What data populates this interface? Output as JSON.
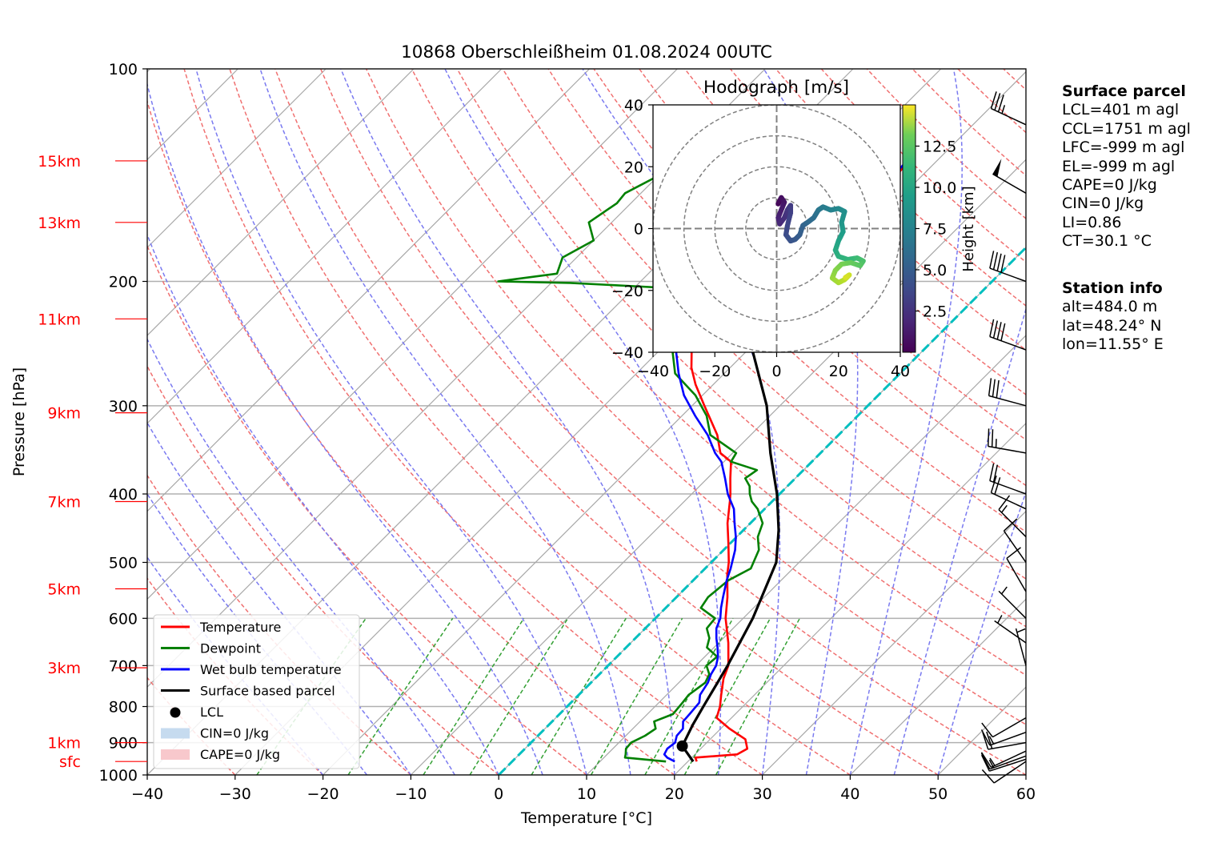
{
  "chart_data": [
    {
      "type": "line",
      "title": "10868 Oberschleißheim 01.08.2024 00UTC",
      "xlabel": "Temperature [°C]",
      "ylabel": "Pressure [hPa]",
      "xlim": [
        -40,
        60
      ],
      "ylim": [
        1000,
        100
      ],
      "y_scale": "log",
      "x_ticks": [
        -40,
        -30,
        -20,
        -10,
        0,
        10,
        20,
        30,
        40,
        50,
        60
      ],
      "x_tick_labels": [
        "−40",
        "−30",
        "−20",
        "−10",
        "0",
        "10",
        "20",
        "30",
        "40",
        "50",
        "60"
      ],
      "y_ticks": [
        100,
        200,
        300,
        400,
        500,
        600,
        700,
        800,
        900,
        1000
      ],
      "height_labels": [
        {
          "text": "15km",
          "p": 135
        },
        {
          "text": "13km",
          "p": 165
        },
        {
          "text": "11km",
          "p": 226
        },
        {
          "text": "9km",
          "p": 307
        },
        {
          "text": "7km",
          "p": 410
        },
        {
          "text": "5km",
          "p": 545
        },
        {
          "text": "3km",
          "p": 705
        },
        {
          "text": "1km",
          "p": 900
        },
        {
          "text": "sfc",
          "p": 957
        }
      ],
      "grid": true,
      "legend_position": "lower-left",
      "series": [
        {
          "name": "Temperature",
          "color": "#ff0000",
          "points": [
            [
              957,
              21.0
            ],
            [
              945,
              20.4
            ],
            [
              935,
              24.8
            ],
            [
              918,
              25.3
            ],
            [
              890,
              24.0
            ],
            [
              860,
              21.0
            ],
            [
              830,
              18.3
            ],
            [
              800,
              17.4
            ],
            [
              770,
              16.2
            ],
            [
              730,
              14.6
            ],
            [
              700,
              13.7
            ],
            [
              650,
              11.1
            ],
            [
              600,
              8.0
            ],
            [
              560,
              5.8
            ],
            [
              520,
              3.2
            ],
            [
              500,
              2.0
            ],
            [
              470,
              -0.2
            ],
            [
              440,
              -2.6
            ],
            [
              410,
              -4.8
            ],
            [
              400,
              -5.6
            ],
            [
              380,
              -7.4
            ],
            [
              360,
              -9.2
            ],
            [
              350,
              -11.4
            ],
            [
              330,
              -13.8
            ],
            [
              300,
              -18.6
            ],
            [
              280,
              -22.0
            ],
            [
              265,
              -24.4
            ],
            [
              250,
              -26.4
            ],
            [
              230,
              -29.6
            ],
            [
              215,
              -31.6
            ],
            [
              205,
              -33.8
            ],
            [
              200,
              -34.4
            ],
            [
              198,
              -33.4
            ],
            [
              196,
              -29.6
            ],
            [
              190,
              -27.0
            ],
            [
              180,
              -26.4
            ],
            [
              170,
              -25.8
            ],
            [
              160,
              -25.0
            ],
            [
              150,
              -24.0
            ],
            [
              145,
              -23.4
            ],
            [
              140,
              -23.0
            ],
            [
              136,
              -23.2
            ],
            [
              135,
              -23.2
            ]
          ]
        },
        {
          "name": "Dewpoint",
          "color": "#008000",
          "points": [
            [
              957,
              17.5
            ],
            [
              945,
              12.4
            ],
            [
              935,
              12.1
            ],
            [
              918,
              11.5
            ],
            [
              900,
              11.4
            ],
            [
              880,
              12.2
            ],
            [
              860,
              12.6
            ],
            [
              840,
              11.6
            ],
            [
              820,
              12.9
            ],
            [
              790,
              12.7
            ],
            [
              770,
              12.5
            ],
            [
              740,
              13.0
            ],
            [
              720,
              12.5
            ],
            [
              700,
              11.2
            ],
            [
              680,
              11.4
            ],
            [
              660,
              9.2
            ],
            [
              640,
              8.4
            ],
            [
              620,
              7.0
            ],
            [
              600,
              6.8
            ],
            [
              580,
              4.0
            ],
            [
              560,
              3.6
            ],
            [
              530,
              4.0
            ],
            [
              510,
              5.2
            ],
            [
              480,
              4.0
            ],
            [
              460,
              2.4
            ],
            [
              440,
              1.4
            ],
            [
              420,
              -0.8
            ],
            [
              410,
              -2.3
            ],
            [
              400,
              -3.4
            ],
            [
              390,
              -4.3
            ],
            [
              380,
              -5.7
            ],
            [
              370,
              -5.3
            ],
            [
              360,
              -9.2
            ],
            [
              350,
              -9.6
            ],
            [
              330,
              -14.6
            ],
            [
              310,
              -17.2
            ],
            [
              290,
              -20.8
            ],
            [
              270,
              -25.6
            ],
            [
              250,
              -28.6
            ],
            [
              230,
              -31.0
            ],
            [
              210,
              -33.6
            ],
            [
              205,
              -33.8
            ],
            [
              201,
              -47.8
            ],
            [
              200,
              -56.2
            ],
            [
              195,
              -50.4
            ],
            [
              185,
              -51.6
            ],
            [
              175,
              -50.0
            ],
            [
              165,
              -52.6
            ],
            [
              155,
              -51.6
            ],
            [
              150,
              -51.8
            ],
            [
              140,
              -49.6
            ],
            [
              135,
              -47.6
            ]
          ]
        },
        {
          "name": "Wet bulb temperature",
          "color": "#0000ff",
          "points": [
            [
              957,
              18.5
            ],
            [
              945,
              17.2
            ],
            [
              935,
              16.5
            ],
            [
              918,
              16.2
            ],
            [
              900,
              16.4
            ],
            [
              880,
              15.8
            ],
            [
              860,
              15.7
            ],
            [
              840,
              14.9
            ],
            [
              820,
              14.8
            ],
            [
              790,
              14.6
            ],
            [
              770,
              13.8
            ],
            [
              740,
              13.3
            ],
            [
              720,
              12.7
            ],
            [
              700,
              12.3
            ],
            [
              680,
              11.5
            ],
            [
              660,
              10.4
            ],
            [
              640,
              9.2
            ],
            [
              620,
              8.1
            ],
            [
              600,
              7.4
            ],
            [
              580,
              6.3
            ],
            [
              560,
              5.3
            ],
            [
              530,
              3.8
            ],
            [
              510,
              2.9
            ],
            [
              480,
              1.3
            ],
            [
              460,
              -0.1
            ],
            [
              440,
              -1.8
            ],
            [
              420,
              -3.5
            ],
            [
              400,
              -5.9
            ],
            [
              380,
              -8.0
            ],
            [
              360,
              -10.3
            ],
            [
              350,
              -12.0
            ],
            [
              330,
              -14.9
            ],
            [
              310,
              -18.5
            ],
            [
              290,
              -22.1
            ],
            [
              270,
              -25.2
            ],
            [
              250,
              -28.2
            ],
            [
              230,
              -31.0
            ],
            [
              210,
              -33.8
            ],
            [
              200,
              -34.6
            ],
            [
              196,
              -30.4
            ],
            [
              190,
              -27.6
            ],
            [
              180,
              -26.8
            ],
            [
              170,
              -26.2
            ],
            [
              160,
              -25.2
            ],
            [
              150,
              -24.4
            ],
            [
              140,
              -23.3
            ],
            [
              135,
              -23.4
            ]
          ]
        },
        {
          "name": "Surface based parcel",
          "color": "#000000",
          "points": [
            [
              957,
              20.6
            ],
            [
              910,
              17.6
            ],
            [
              850,
              16.4
            ],
            [
              800,
              15.5
            ],
            [
              700,
              13.6
            ],
            [
              600,
              11.1
            ],
            [
              500,
              7.4
            ],
            [
              450,
              4.0
            ],
            [
              400,
              -0.3
            ],
            [
              350,
              -5.7
            ],
            [
              300,
              -11.5
            ],
            [
              250,
              -19.5
            ],
            [
              200,
              -28.5
            ],
            [
              150,
              -38.5
            ],
            [
              135,
              -41.3
            ]
          ]
        }
      ],
      "lcl": {
        "name": "LCL",
        "p": 910,
        "t": 17.6
      },
      "cin_legend": "CIN=0 J/kg",
      "cape_legend": "CAPE=0 J/kg",
      "zero_isotherm_color": "#00bfbf",
      "wind_barbs": [
        {
          "p": 957,
          "dir": 236,
          "speed_kt": 10
        },
        {
          "p": 950,
          "dir": 252,
          "speed_kt": 10
        },
        {
          "p": 940,
          "dir": 250,
          "speed_kt": 15
        },
        {
          "p": 925,
          "dir": 245,
          "speed_kt": 15
        },
        {
          "p": 900,
          "dir": 260,
          "speed_kt": 20
        },
        {
          "p": 870,
          "dir": 250,
          "speed_kt": 15
        },
        {
          "p": 830,
          "dir": 240,
          "speed_kt": 10
        },
        {
          "p": 700,
          "dir": 345,
          "speed_kt": 5
        },
        {
          "p": 650,
          "dir": 305,
          "speed_kt": 5
        },
        {
          "p": 600,
          "dir": 315,
          "speed_kt": 5
        },
        {
          "p": 550,
          "dir": 330,
          "speed_kt": 10
        },
        {
          "p": 500,
          "dir": 325,
          "speed_kt": 10
        },
        {
          "p": 460,
          "dir": 315,
          "speed_kt": 15
        },
        {
          "p": 420,
          "dir": 295,
          "speed_kt": 20
        },
        {
          "p": 400,
          "dir": 290,
          "speed_kt": 20
        },
        {
          "p": 350,
          "dir": 280,
          "speed_kt": 25
        },
        {
          "p": 300,
          "dir": 285,
          "speed_kt": 30
        },
        {
          "p": 250,
          "dir": 290,
          "speed_kt": 40
        },
        {
          "p": 200,
          "dir": 290,
          "speed_kt": 40
        },
        {
          "p": 150,
          "dir": 300,
          "speed_kt": 50
        },
        {
          "p": 120,
          "dir": 295,
          "speed_kt": 35
        }
      ],
      "legend": [
        {
          "label": "Temperature",
          "kind": "line",
          "color": "#ff0000"
        },
        {
          "label": "Dewpoint",
          "kind": "line",
          "color": "#008000"
        },
        {
          "label": "Wet bulb temperature",
          "kind": "line",
          "color": "#0000ff"
        },
        {
          "label": "Surface based parcel",
          "kind": "line",
          "color": "#000000"
        },
        {
          "label": "LCL",
          "kind": "dot",
          "color": "#000000"
        },
        {
          "label": "CIN=0 J/kg",
          "kind": "patch",
          "color": "#c6dbef"
        },
        {
          "label": "CAPE=0 J/kg",
          "kind": "patch",
          "color": "#f8c8cc"
        }
      ]
    },
    {
      "type": "scatter",
      "title": "Hodograph [m/s]",
      "xlim": [
        -40,
        40
      ],
      "ylim": [
        -40,
        40
      ],
      "ticks": [
        -40,
        -20,
        0,
        20,
        40
      ],
      "tick_labels": [
        "−40",
        "−20",
        "0",
        "20",
        "40"
      ],
      "rings": [
        10,
        20,
        30,
        40
      ],
      "colorbar": {
        "label": "Height [km]",
        "colormap": "viridis",
        "min": 0,
        "max": 15,
        "ticks": [
          2.5,
          5.0,
          7.5,
          10.0,
          12.5
        ],
        "tick_labels": [
          "2.5",
          "5.0",
          "7.5",
          "10.0",
          "12.5"
        ]
      },
      "points": [
        [
          0.5,
          8,
          0.2
        ],
        [
          1.5,
          10,
          0.5
        ],
        [
          2.5,
          8.5,
          0.8
        ],
        [
          1.5,
          6,
          1.1
        ],
        [
          0.5,
          3.5,
          1.4
        ],
        [
          1.0,
          1.5,
          1.7
        ],
        [
          2.5,
          3.5,
          2.0
        ],
        [
          3.5,
          6,
          2.3
        ],
        [
          4.5,
          7.5,
          2.6
        ],
        [
          4.5,
          5,
          2.9
        ],
        [
          3.5,
          1,
          3.2
        ],
        [
          3.0,
          -2,
          3.5
        ],
        [
          4.5,
          -4,
          3.8
        ],
        [
          6.0,
          -3.5,
          4.1
        ],
        [
          7.5,
          -2,
          4.4
        ],
        [
          8.5,
          1,
          4.7
        ],
        [
          10,
          2,
          5.0
        ],
        [
          12,
          3.5,
          5.4
        ],
        [
          13.5,
          6,
          5.8
        ],
        [
          15,
          7,
          6.2
        ],
        [
          17.5,
          6,
          6.6
        ],
        [
          20,
          6.5,
          7.0
        ],
        [
          22,
          5.5,
          7.4
        ],
        [
          21,
          2,
          7.8
        ],
        [
          21.5,
          -1,
          8.2
        ],
        [
          20,
          -4,
          8.6
        ],
        [
          19,
          -7,
          9.0
        ],
        [
          20,
          -9,
          9.4
        ],
        [
          23,
          -10,
          9.8
        ],
        [
          26,
          -9.5,
          10.2
        ],
        [
          28,
          -10.5,
          10.6
        ],
        [
          27,
          -12,
          11.0
        ],
        [
          24,
          -11,
          11.4
        ],
        [
          21,
          -11.5,
          11.8
        ],
        [
          19,
          -13.5,
          12.2
        ],
        [
          18,
          -16,
          12.6
        ],
        [
          20,
          -17.5,
          13.0
        ],
        [
          22,
          -16.5,
          13.4
        ],
        [
          23.5,
          -15,
          13.8
        ],
        [
          22,
          -16,
          14.2
        ]
      ]
    }
  ],
  "info": {
    "surface_heading": "Surface parcel",
    "surface_lines": [
      "LCL=401 m agl",
      "CCL=1751 m agl",
      "LFC=-999 m agl",
      "EL=-999 m agl",
      "CAPE=0 J/kg",
      "CIN=0 J/kg",
      "LI=0.86",
      "CT=30.1 °C"
    ],
    "station_heading": "Station info",
    "station_lines": [
      "alt=484.0 m",
      "lat=48.24° N",
      "lon=11.55° E"
    ]
  }
}
